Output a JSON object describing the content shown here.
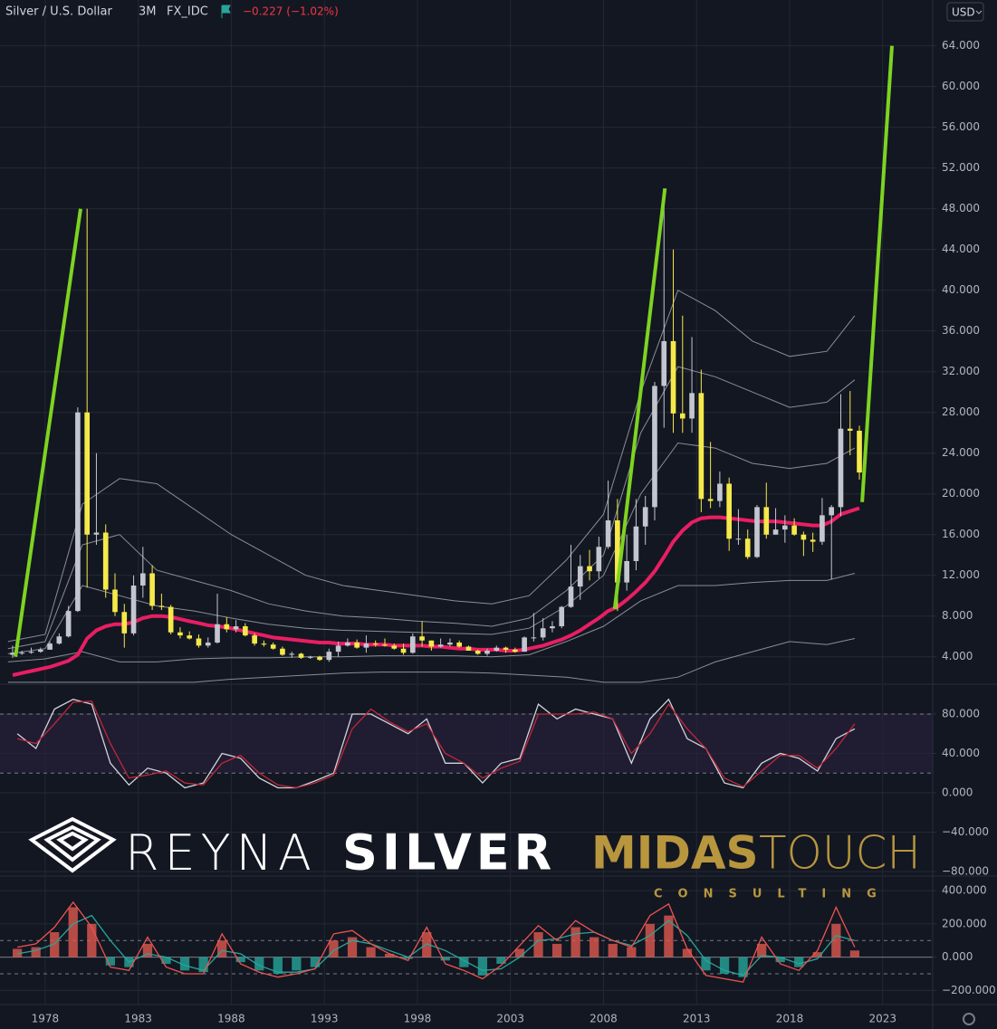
{
  "header": {
    "title": "Silver / U.S. Dollar",
    "interval": "3M",
    "source": "FX_IDC",
    "change": "−0.227 (−1.02%)",
    "currency": "USD"
  },
  "watermark": {
    "left_a": "REYNA",
    "left_b": "SILVER",
    "right_a": "MIDAS",
    "right_b": "TOUCH",
    "tagline": "CONSULTING"
  },
  "chart_data": [
    {
      "type": "candlestick",
      "up_color": "#c3c6ce",
      "down_color": "#f5e94a",
      "grid": true,
      "xlim": [
        1975.57,
        2025.69
      ],
      "ylim": [
        1.4,
        68.5
      ],
      "xticks": [
        1978,
        1983,
        1988,
        1993,
        1998,
        2003,
        2008,
        2013,
        2018,
        2023
      ],
      "yticks": [
        {
          "value": 4,
          "label": "4.000"
        },
        {
          "value": 8,
          "label": "8.000"
        },
        {
          "value": 12,
          "label": "12.000"
        },
        {
          "value": 16,
          "label": "16.000"
        },
        {
          "value": 20,
          "label": "20.000"
        },
        {
          "value": 24,
          "label": "24.000"
        },
        {
          "value": 28,
          "label": "28.000"
        },
        {
          "value": 32,
          "label": "32.000"
        },
        {
          "value": 36,
          "label": "36.000"
        },
        {
          "value": 40,
          "label": "40.000"
        },
        {
          "value": 44,
          "label": "44.000"
        },
        {
          "value": 48,
          "label": "48.000"
        },
        {
          "value": 52,
          "label": "52.000"
        },
        {
          "value": 56,
          "label": "56.000"
        },
        {
          "value": 60,
          "label": "60.000"
        },
        {
          "value": 64,
          "label": "64.000"
        }
      ],
      "x": [
        1976,
        1976.5,
        1977,
        1977.5,
        1978,
        1978.5,
        1979,
        1979.5,
        1980,
        1980.5,
        1981,
        1981.5,
        1982,
        1982.5,
        1983,
        1983.5,
        1984,
        1984.5,
        1985,
        1985.5,
        1986,
        1986.5,
        1987,
        1987.5,
        1988,
        1988.5,
        1989,
        1989.5,
        1990,
        1990.5,
        1991,
        1991.5,
        1992,
        1992.5,
        1993,
        1993.5,
        1994,
        1994.5,
        1995,
        1995.5,
        1996,
        1996.5,
        1997,
        1997.5,
        1998,
        1998.5,
        1999,
        1999.5,
        2000,
        2000.5,
        2001,
        2001.5,
        2002,
        2002.5,
        2003,
        2003.5,
        2004,
        2004.5,
        2005,
        2005.5,
        2006,
        2006.5,
        2007,
        2007.5,
        2008,
        2008.5,
        2009,
        2009.5,
        2010,
        2010.5,
        2011,
        2011.5,
        2012,
        2012.5,
        2013,
        2013.5,
        2014,
        2014.5,
        2015,
        2015.5,
        2016,
        2016.5,
        2017,
        2017.5,
        2018,
        2018.5,
        2019,
        2019.5,
        2020,
        2020.5,
        2021,
        2021.5
      ],
      "open": [
        4.2,
        4.4,
        4.4,
        4.5,
        4.7,
        5.3,
        6.0,
        8.5,
        28,
        16,
        16.2,
        10.6,
        8.4,
        6.3,
        11,
        12.2,
        9,
        8.9,
        6.4,
        6.1,
        5.8,
        5.1,
        5.4,
        7.2,
        6.7,
        7.0,
        6.1,
        5.3,
        5.2,
        4.8,
        4.2,
        4.3,
        3.9,
        4.0,
        3.7,
        4.5,
        5.1,
        5.4,
        4.9,
        5.3,
        5.2,
        5.1,
        4.8,
        4.4,
        6.0,
        5.6,
        5.0,
        5.2,
        5.4,
        5.0,
        4.6,
        4.3,
        4.6,
        4.9,
        4.7,
        4.5,
        5.9,
        5.9,
        6.8,
        7.0,
        8.9,
        10.9,
        12.9,
        12.4,
        14.8,
        17.4,
        11.3,
        13.4,
        16.8,
        18.7,
        30.6,
        35.0,
        27.9,
        27.4,
        29.9,
        19.5,
        19.3,
        21.0,
        15.6,
        15.6,
        13.8,
        18.7,
        16.0,
        16.5,
        16.9,
        16.0,
        15.5,
        15.3,
        17.9,
        18.7,
        26.4,
        26.2
      ],
      "high": [
        5.1,
        4.6,
        4.9,
        4.9,
        5.5,
        6.3,
        9.0,
        28.5,
        48,
        24,
        17,
        12.2,
        9.2,
        12,
        14.8,
        13,
        10.2,
        9.1,
        6.9,
        6.5,
        6.2,
        5.9,
        10.2,
        7.9,
        7.6,
        7.3,
        6.3,
        5.6,
        5.4,
        5.0,
        4.5,
        4.4,
        4.1,
        4.1,
        4.8,
        5.5,
        5.8,
        5.7,
        6.1,
        5.6,
        5.8,
        5.3,
        5.3,
        6.3,
        7.5,
        5.6,
        5.8,
        5.8,
        5.6,
        5.1,
        4.7,
        4.8,
        5.1,
        5.0,
        4.9,
        6.0,
        8.3,
        7.8,
        7.5,
        9.0,
        15.0,
        14.0,
        14.5,
        15.8,
        21.3,
        19.5,
        16.0,
        19.5,
        19.8,
        31.0,
        49.8,
        44.0,
        37.5,
        35.4,
        32.2,
        25.1,
        22.2,
        21.6,
        18.5,
        16.5,
        18.9,
        21.1,
        18.6,
        17.9,
        17.6,
        16.3,
        16.2,
        19.6,
        18.9,
        29.8,
        30.1,
        26.7
      ],
      "low": [
        3.9,
        4.2,
        4.3,
        4.4,
        4.7,
        5.2,
        5.9,
        8.4,
        10.8,
        15,
        9.8,
        8,
        4.9,
        6.1,
        9.8,
        8.6,
        8.6,
        6.2,
        5.8,
        5.7,
        4.9,
        4.9,
        5.3,
        6.4,
        6.4,
        6.0,
        5.1,
        5.0,
        4.7,
        4.1,
        3.9,
        3.8,
        3.8,
        3.6,
        3.5,
        4.0,
        5.0,
        4.8,
        4.4,
        5.0,
        5.0,
        4.7,
        4.2,
        4.3,
        5.0,
        4.6,
        4.9,
        5.0,
        4.9,
        4.6,
        4.2,
        4.1,
        4.5,
        4.4,
        4.4,
        4.5,
        5.5,
        5.6,
        6.4,
        6.8,
        8.8,
        9.6,
        11.5,
        11.7,
        14.6,
        8.5,
        10.5,
        12.5,
        15.0,
        17.4,
        26.5,
        26.0,
        26.0,
        26.0,
        18.2,
        18.6,
        18.7,
        14.4,
        15.0,
        13.6,
        13.7,
        15.6,
        16.0,
        15.2,
        15.9,
        13.9,
        14.3,
        15.0,
        11.6,
        17.8,
        23.8,
        21.4
      ],
      "close": [
        4.4,
        4.4,
        4.5,
        4.7,
        5.3,
        6.0,
        8.5,
        28,
        16,
        16.2,
        10.6,
        8.4,
        6.3,
        11,
        12.2,
        9,
        8.9,
        6.4,
        6.1,
        5.8,
        5.1,
        5.4,
        7.2,
        6.7,
        7.0,
        6.1,
        5.3,
        5.2,
        4.8,
        4.2,
        4.3,
        3.9,
        4.0,
        3.7,
        4.5,
        5.1,
        5.4,
        4.9,
        5.3,
        5.2,
        5.1,
        4.8,
        4.4,
        6.0,
        5.6,
        5.0,
        5.2,
        5.4,
        5.0,
        4.6,
        4.3,
        4.6,
        4.9,
        4.7,
        4.5,
        5.9,
        5.9,
        6.8,
        7.0,
        8.9,
        10.9,
        12.9,
        12.4,
        14.8,
        17.4,
        11.3,
        13.4,
        16.8,
        18.7,
        30.6,
        35.0,
        27.9,
        27.4,
        29.9,
        19.5,
        19.3,
        21.0,
        15.6,
        15.6,
        13.8,
        18.7,
        16.0,
        16.5,
        16.9,
        16.0,
        15.5,
        15.3,
        17.9,
        18.7,
        26.4,
        26.2,
        22.1
      ],
      "ma": {
        "color": "#e91e63",
        "values": [
          2.2,
          2.4,
          2.6,
          2.8,
          3.0,
          3.3,
          3.6,
          4.2,
          5.8,
          6.6,
          7.0,
          7.2,
          7.2,
          7.4,
          7.8,
          8.0,
          8.0,
          7.9,
          7.7,
          7.5,
          7.3,
          7.1,
          7.0,
          6.9,
          6.7,
          6.5,
          6.3,
          6.1,
          5.9,
          5.8,
          5.7,
          5.6,
          5.5,
          5.4,
          5.4,
          5.3,
          5.3,
          5.3,
          5.2,
          5.2,
          5.2,
          5.1,
          5.1,
          5.1,
          5.1,
          5.0,
          5.0,
          4.9,
          4.8,
          4.8,
          4.7,
          4.7,
          4.7,
          4.6,
          4.6,
          4.7,
          4.9,
          5.1,
          5.4,
          5.7,
          6.1,
          6.6,
          7.2,
          7.8,
          8.5,
          8.9,
          9.6,
          10.4,
          11.3,
          12.4,
          13.8,
          15.3,
          16.4,
          17.2,
          17.6,
          17.7,
          17.7,
          17.6,
          17.5,
          17.4,
          17.3,
          17.3,
          17.3,
          17.2,
          17.1,
          17.0,
          16.9,
          16.9,
          17.3,
          18.0,
          18.3,
          18.6
        ]
      },
      "bands": {
        "color": "#8a8d96",
        "x": [
          1976,
          1978,
          1980,
          1982,
          1984,
          1986,
          1988,
          1990,
          1992,
          1994,
          1996,
          1998,
          2000,
          2002,
          2004,
          2006,
          2008,
          2010,
          2012,
          2014,
          2016,
          2018,
          2020,
          2021.5
        ],
        "lines": [
          [
            5.5,
            6.2,
            19,
            21.5,
            21,
            18.5,
            16,
            14,
            12,
            11,
            10.5,
            10,
            9.5,
            9.2,
            10,
            13.5,
            18,
            30,
            40,
            38,
            35,
            33.5,
            34,
            37.5
          ],
          [
            4.8,
            5.5,
            15,
            16,
            12.5,
            11.5,
            10.5,
            9.2,
            8.5,
            8,
            7.8,
            7.5,
            7.3,
            7,
            7.8,
            10.5,
            14,
            26,
            32.5,
            31.5,
            30,
            28.5,
            29,
            31.2
          ],
          [
            4.3,
            4.8,
            11,
            10,
            9,
            8.5,
            7.8,
            7.2,
            6.8,
            6.6,
            6.5,
            6.4,
            6.3,
            6.2,
            6.8,
            9,
            12,
            20,
            25,
            24.5,
            23,
            22.5,
            23,
            24.5
          ],
          [
            3.5,
            3.8,
            4.5,
            3.5,
            3.5,
            3.8,
            3.9,
            3.9,
            4.0,
            4.0,
            4.1,
            4.1,
            4.1,
            4.0,
            4.2,
            5.5,
            7,
            9.5,
            11,
            11,
            11.3,
            11.5,
            11.5,
            12.2
          ],
          [
            1.5,
            1.5,
            1.5,
            1.5,
            1.5,
            1.5,
            1.8,
            2,
            2.2,
            2.4,
            2.5,
            2.5,
            2.5,
            2.4,
            2.2,
            2,
            1.5,
            1.5,
            2,
            3.5,
            4.5,
            5.5,
            5.2,
            5.8
          ]
        ]
      },
      "trend_lines": [
        {
          "color": "#7ed321",
          "x": [
            1976.4,
            1979.9
          ],
          "values": [
            4.0,
            48
          ]
        },
        {
          "color": "#7ed321",
          "x": [
            2008.6,
            2011.3
          ],
          "values": [
            8.7,
            50
          ]
        },
        {
          "color": "#7ed321",
          "x": [
            2021.9,
            2023.5
          ],
          "values": [
            19.2,
            64
          ]
        }
      ]
    },
    {
      "type": "line",
      "ylim": [
        -83.7,
        109.4
      ],
      "levels": [
        80,
        20
      ],
      "band_color": "#2a1f3d",
      "yticks": [
        {
          "value": 80,
          "label": "80.000"
        },
        {
          "value": 40,
          "label": "40.000"
        },
        {
          "value": 0,
          "label": "0.000"
        },
        {
          "value": -40,
          "label": "−40.000"
        },
        {
          "value": -80,
          "label": "−80.000"
        }
      ],
      "x": [
        1976,
        1977,
        1978,
        1979,
        1980,
        1981,
        1982,
        1983,
        1984,
        1985,
        1986,
        1987,
        1988,
        1989,
        1990,
        1991,
        1992,
        1993,
        1994,
        1995,
        1996,
        1997,
        1998,
        1999,
        2000,
        2001,
        2002,
        2003,
        2004,
        2005,
        2006,
        2007,
        2008,
        2009,
        2010,
        2011,
        2012,
        2013,
        2014,
        2015,
        2016,
        2017,
        2018,
        2019,
        2020,
        2021
      ],
      "series": [
        {
          "color": "#d1d4dc",
          "values": [
            60,
            45,
            85,
            95,
            90,
            30,
            8,
            25,
            20,
            5,
            10,
            40,
            35,
            15,
            5,
            5,
            12,
            20,
            80,
            80,
            70,
            60,
            75,
            30,
            30,
            10,
            30,
            35,
            90,
            75,
            85,
            80,
            75,
            30,
            75,
            95,
            55,
            45,
            10,
            5,
            30,
            40,
            35,
            22,
            55,
            65
          ]
        },
        {
          "color": "#c0283a",
          "values": [
            55,
            50,
            70,
            92,
            93,
            50,
            15,
            18,
            22,
            10,
            8,
            30,
            38,
            20,
            8,
            5,
            10,
            18,
            65,
            85,
            72,
            62,
            70,
            40,
            30,
            15,
            25,
            32,
            80,
            80,
            80,
            82,
            75,
            40,
            60,
            90,
            65,
            45,
            15,
            6,
            22,
            38,
            38,
            25,
            45,
            70
          ]
        }
      ]
    },
    {
      "type": "bar_line",
      "ylim": [
        -285,
        482
      ],
      "levels": [
        100,
        -100
      ],
      "yticks": [
        {
          "value": 400,
          "label": "400.000"
        },
        {
          "value": 200,
          "label": "200.000"
        },
        {
          "value": 0,
          "label": "0.000"
        },
        {
          "value": -200,
          "label": "−200.000"
        }
      ],
      "x": [
        1976,
        1977,
        1978,
        1979,
        1980,
        1981,
        1982,
        1983,
        1984,
        1985,
        1986,
        1987,
        1988,
        1989,
        1990,
        1991,
        1992,
        1993,
        1994,
        1995,
        1996,
        1997,
        1998,
        1999,
        2000,
        2001,
        2002,
        2003,
        2004,
        2005,
        2006,
        2007,
        2008,
        2009,
        2010,
        2011,
        2012,
        2013,
        2014,
        2015,
        2016,
        2017,
        2018,
        2019,
        2020,
        2021
      ],
      "bars": {
        "pos_color": "#e0594f",
        "neg_color": "#26a69a",
        "values": [
          50,
          60,
          150,
          300,
          200,
          -50,
          -60,
          80,
          -40,
          -80,
          -90,
          100,
          -30,
          -80,
          -100,
          -80,
          -60,
          100,
          120,
          60,
          20,
          -10,
          150,
          -20,
          -60,
          -110,
          -40,
          50,
          150,
          80,
          180,
          120,
          80,
          60,
          200,
          250,
          50,
          -80,
          -100,
          -120,
          80,
          -30,
          -60,
          30,
          200,
          40
        ]
      },
      "series": [
        {
          "color": "#26a69a",
          "values": [
            20,
            40,
            80,
            200,
            250,
            100,
            -30,
            20,
            0,
            -50,
            -80,
            40,
            20,
            -50,
            -90,
            -90,
            -70,
            40,
            100,
            80,
            40,
            0,
            80,
            40,
            -20,
            -80,
            -70,
            0,
            100,
            110,
            140,
            150,
            100,
            70,
            130,
            220,
            130,
            -20,
            -80,
            -110,
            10,
            0,
            -40,
            -10,
            130,
            100
          ]
        },
        {
          "color": "#ef5350",
          "values": [
            60,
            80,
            180,
            330,
            180,
            -60,
            -80,
            120,
            -60,
            -100,
            -100,
            140,
            -40,
            -90,
            -120,
            -100,
            -70,
            140,
            160,
            80,
            20,
            -20,
            180,
            -40,
            -80,
            -130,
            -50,
            70,
            190,
            100,
            220,
            150,
            100,
            60,
            250,
            320,
            50,
            -110,
            -130,
            -150,
            120,
            -40,
            -80,
            40,
            300,
            60
          ]
        }
      ]
    }
  ]
}
